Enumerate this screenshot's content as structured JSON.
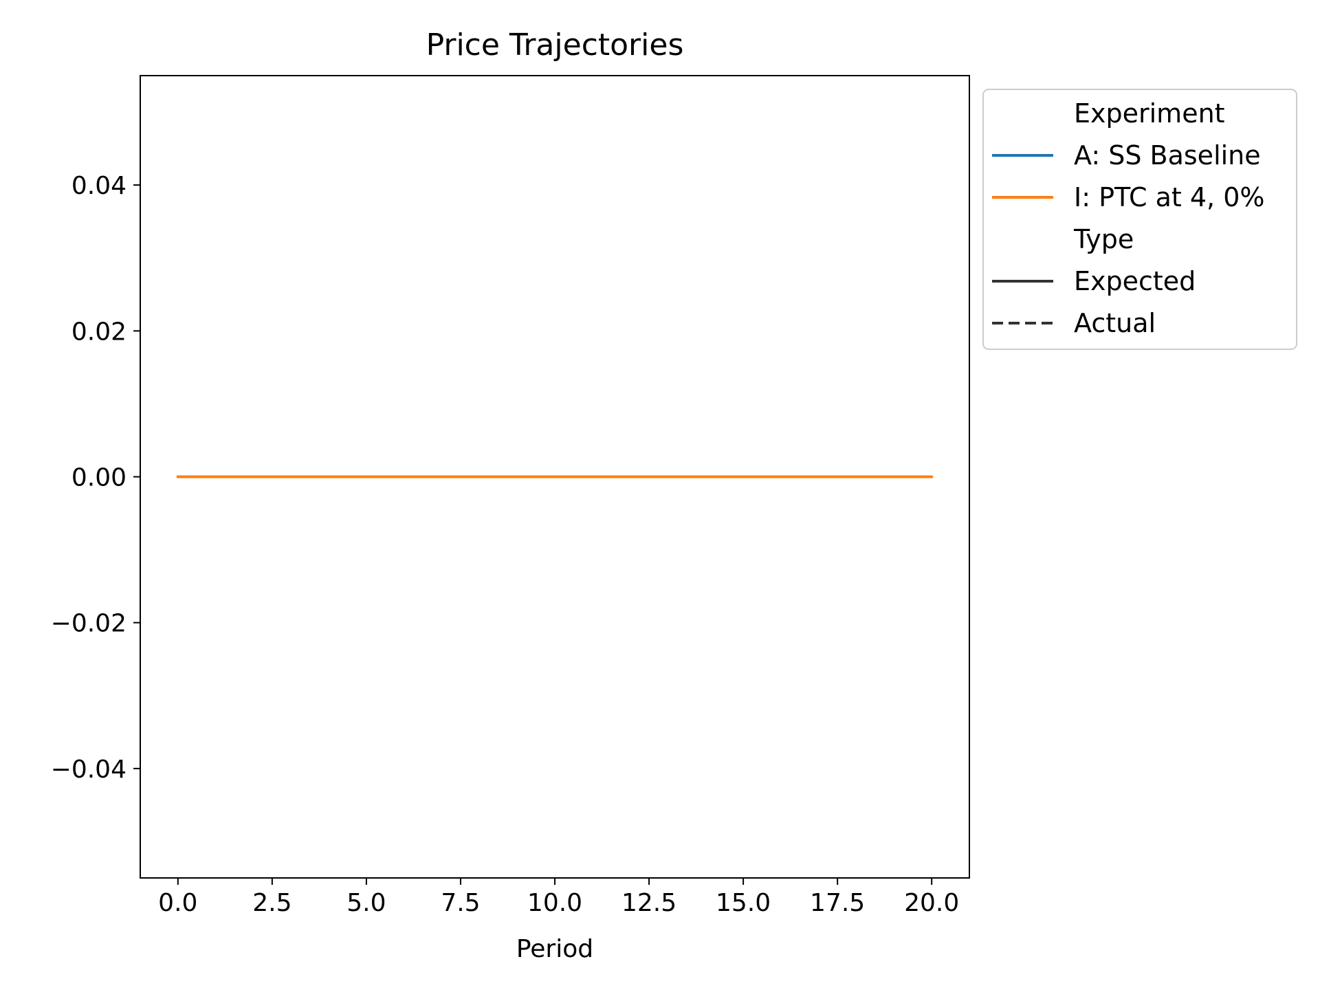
{
  "chart_data": {
    "type": "line",
    "title": "Price Trajectories",
    "xlabel": "Period",
    "ylabel": "",
    "xlim": [
      -1.0,
      21.0
    ],
    "ylim": [
      -0.055,
      0.055
    ],
    "x_ticks": [
      0.0,
      2.5,
      5.0,
      7.5,
      10.0,
      12.5,
      15.0,
      17.5,
      20.0
    ],
    "x_tick_labels": [
      "0.0",
      "2.5",
      "5.0",
      "7.5",
      "10.0",
      "12.5",
      "15.0",
      "17.5",
      "20.0"
    ],
    "y_ticks": [
      0.04,
      0.02,
      0.0,
      -0.02,
      -0.04
    ],
    "y_tick_labels": [
      "0.04",
      "0.02",
      "0.00",
      "−0.02",
      "−0.04"
    ],
    "grid": false,
    "legend_placement": "outside-right-top",
    "x": [
      0,
      1,
      2,
      3,
      4,
      5,
      6,
      7,
      8,
      9,
      10,
      11,
      12,
      13,
      14,
      15,
      16,
      17,
      18,
      19,
      20
    ],
    "series": [
      {
        "name": "A: SS Baseline",
        "color": "#1f77b4",
        "line_type": "Expected",
        "values": [
          0,
          0,
          0,
          0,
          0,
          0,
          0,
          0,
          0,
          0,
          0,
          0,
          0,
          0,
          0,
          0,
          0,
          0,
          0,
          0,
          0
        ]
      },
      {
        "name": "I: PTC at 4, 0%",
        "color": "#ff7f0e",
        "line_type": "Expected",
        "values": [
          0,
          0,
          0,
          0,
          0,
          0,
          0,
          0,
          0,
          0,
          0,
          0,
          0,
          0,
          0,
          0,
          0,
          0,
          0,
          0,
          0
        ]
      }
    ],
    "legend": {
      "groups": [
        {
          "title": "Experiment",
          "entries": [
            {
              "label": "A: SS Baseline",
              "color": "#1f77b4",
              "dash": "solid"
            },
            {
              "label": "I: PTC at 4, 0%",
              "color": "#ff7f0e",
              "dash": "solid"
            }
          ]
        },
        {
          "title": "Type",
          "entries": [
            {
              "label": "Expected",
              "color": "#333333",
              "dash": "solid"
            },
            {
              "label": "Actual",
              "color": "#333333",
              "dash": "dashed"
            }
          ]
        }
      ]
    }
  }
}
